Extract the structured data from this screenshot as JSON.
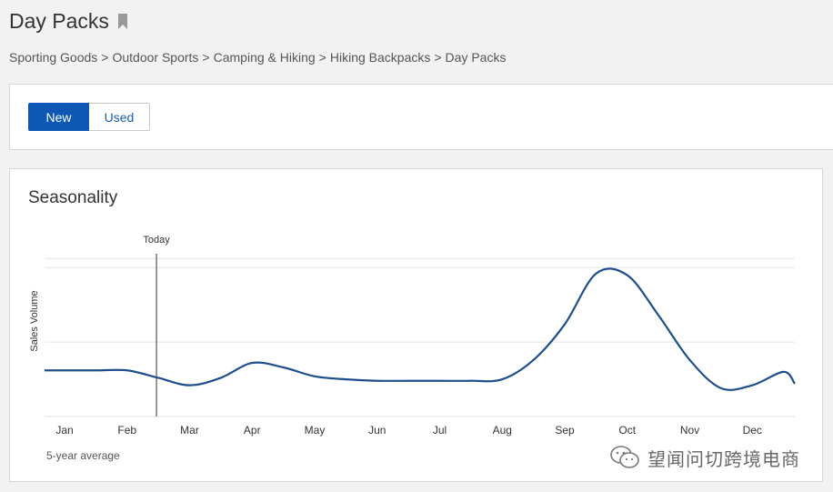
{
  "header": {
    "title": "Day Packs",
    "breadcrumb": [
      "Sporting Goods",
      "Outdoor Sports",
      "Camping & Hiking",
      "Hiking Backpacks",
      "Day Packs"
    ],
    "separator": ">"
  },
  "condition": {
    "options": [
      "New",
      "Used"
    ],
    "selected": "New",
    "accent_color": "#0b57b3"
  },
  "seasonality": {
    "title": "Seasonality",
    "footnote": "5-year average",
    "line_color": "#1f4e8c"
  },
  "watermark": {
    "text": "望闻问切跨境电商",
    "icon": "wechat-icon"
  },
  "chart_data": {
    "type": "line",
    "title": "Seasonality",
    "xlabel": "",
    "ylabel": "Sales Volume",
    "categories": [
      "Jan",
      "Feb",
      "Mar",
      "Apr",
      "May",
      "Jun",
      "Jul",
      "Aug",
      "Sep",
      "Oct",
      "Nov",
      "Dec"
    ],
    "x": [
      0,
      0.5,
      1.0,
      1.5,
      2.0,
      2.5,
      3.0,
      3.5,
      4.0,
      4.5,
      5.0,
      5.5,
      6.0,
      6.5,
      7.0,
      7.5,
      8.0,
      8.5,
      9.0,
      9.5,
      10.0,
      10.5,
      11.0,
      11.5
    ],
    "series": [
      {
        "values": [
          0.31,
          0.31,
          0.31,
          0.26,
          0.21,
          0.26,
          0.36,
          0.33,
          0.27,
          0.25,
          0.24,
          0.24,
          0.24,
          0.24,
          0.25,
          0.38,
          0.62,
          0.96,
          0.95,
          0.68,
          0.38,
          0.19,
          0.21,
          0.3
        ]
      }
    ],
    "ylim": [
      0,
      1.1
    ],
    "grid": true,
    "annotations": [
      {
        "label": "Today",
        "x": 1.47
      }
    ]
  }
}
